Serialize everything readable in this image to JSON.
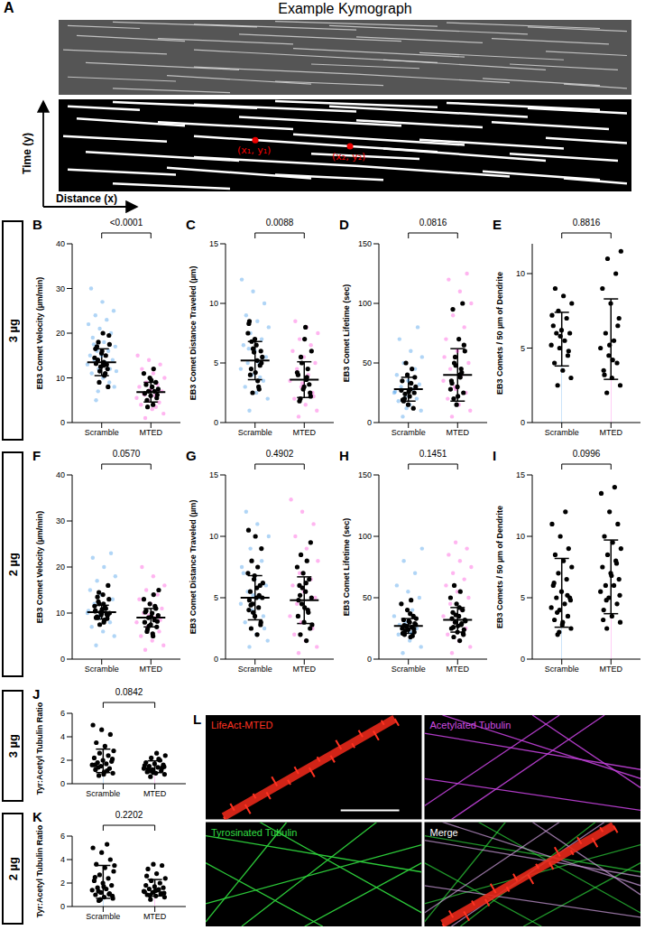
{
  "chart_data": [
    {
      "type": "scatter",
      "label": "B",
      "y_label": "EB3 Comet Velocity (µm/min)",
      "ylim": [
        0,
        40
      ],
      "yticks": [
        0,
        10,
        20,
        30,
        40
      ],
      "annotation": "<0.0001",
      "series": [
        {
          "name": "Scramble",
          "color": "#1e88e5",
          "values": [
            5,
            8,
            10,
            11,
            12,
            12,
            13,
            13,
            14,
            14,
            15,
            15,
            16,
            16,
            17,
            18,
            19,
            20,
            21,
            22,
            23,
            24,
            25,
            27,
            30,
            9,
            7,
            11.5,
            13.5,
            17.5
          ],
          "cell_values": [
            13.5,
            14,
            12,
            15.5,
            16.5,
            11,
            9,
            19.5,
            20,
            17,
            13,
            12.5,
            14.5,
            10.5,
            18,
            8,
            16,
            13.2,
            15,
            11.5,
            17.5,
            12.8
          ],
          "mean": 13.5,
          "sd": 3
        },
        {
          "name": "MTED",
          "color": "#ff2ad4",
          "values": [
            1,
            2,
            3,
            4,
            4.5,
            5,
            5.5,
            6,
            6.5,
            7,
            7.5,
            8,
            8.5,
            9,
            10,
            11,
            12,
            13,
            14,
            15,
            3.5,
            6.2
          ],
          "cell_values": [
            4,
            5,
            5.5,
            6,
            6.5,
            7,
            7,
            7.5,
            8,
            8.5,
            9,
            10,
            11,
            12,
            3.5,
            6.2,
            9.5
          ],
          "mean": 6.8,
          "sd": 2.2
        }
      ]
    },
    {
      "type": "scatter",
      "label": "C",
      "y_label": "EB3 Comet Distance Traveled (µm)",
      "ylim": [
        0,
        15
      ],
      "yticks": [
        0,
        5,
        10,
        15
      ],
      "annotation": "0.0088",
      "series": [
        {
          "name": "Scramble",
          "color": "#1e88e5",
          "values": [
            1,
            2,
            2.5,
            3,
            3.5,
            4,
            4.5,
            5,
            5,
            5.5,
            6,
            6.5,
            7,
            7.5,
            8,
            8.5,
            9,
            10,
            11,
            12,
            3.8,
            6.2
          ],
          "cell_values": [
            5.2,
            4.5,
            6,
            7,
            8.3,
            3,
            2.5,
            5.5,
            6.5,
            4,
            4.8,
            5.9,
            7.5,
            3.5,
            6.8,
            5,
            4.2,
            8.5,
            2.8,
            6.2
          ],
          "mean": 5.2,
          "sd": 1.6
        },
        {
          "name": "MTED",
          "color": "#ff2ad4",
          "values": [
            0.5,
            1,
            1.5,
            2,
            2.5,
            3,
            3.5,
            4,
            4.5,
            5,
            5.5,
            6,
            6.5,
            7,
            7.5,
            8,
            8.5,
            2.2,
            3.3
          ],
          "cell_values": [
            3.6,
            2,
            2.5,
            3,
            4,
            4.5,
            5,
            6,
            8,
            1.8,
            3.2,
            2.8,
            4.2,
            3.8,
            5.5,
            2.2,
            7
          ],
          "mean": 3.6,
          "sd": 1.5
        }
      ]
    },
    {
      "type": "scatter",
      "label": "D",
      "y_label": "EB3 Comet Lifetime (sec)",
      "ylim": [
        0,
        150
      ],
      "yticks": [
        0,
        50,
        100,
        150
      ],
      "annotation": "0.0816",
      "series": [
        {
          "name": "Scramble",
          "color": "#1e88e5",
          "values": [
            5,
            10,
            15,
            18,
            20,
            22,
            25,
            28,
            30,
            32,
            35,
            40,
            45,
            50,
            55,
            60,
            70,
            80,
            12,
            26
          ],
          "cell_values": [
            28,
            20,
            25,
            15,
            35,
            45,
            50,
            30,
            22,
            18,
            12,
            40,
            27,
            33,
            24,
            38,
            26,
            19
          ],
          "mean": 28,
          "sd": 10
        },
        {
          "name": "MTED",
          "color": "#ff2ad4",
          "values": [
            5,
            10,
            15,
            20,
            25,
            30,
            35,
            40,
            45,
            50,
            60,
            70,
            80,
            90,
            100,
            110,
            120,
            125,
            28,
            55
          ],
          "cell_values": [
            40,
            20,
            25,
            30,
            35,
            45,
            55,
            60,
            70,
            95,
            100,
            15,
            28,
            38,
            50,
            65,
            22,
            33,
            42,
            48
          ],
          "mean": 40,
          "sd": 22
        }
      ]
    },
    {
      "type": "bar",
      "label": "E",
      "y_label": "EB3 Comets / 50 µm of Dendrite",
      "ylim": [
        0,
        12
      ],
      "yticks": [
        0,
        5,
        10
      ],
      "annotation": "0.8816",
      "series": [
        {
          "name": "Scramble",
          "color": "#1e88e5",
          "values": [
            2.5,
            3,
            3.5,
            4,
            4.5,
            5,
            5.2,
            5.5,
            6,
            6,
            6.2,
            6.5,
            7,
            7.5,
            8,
            8.5,
            9,
            4.8,
            5.8,
            7.2
          ],
          "mean": 5.6,
          "sd": 1.8
        },
        {
          "name": "MTED",
          "color": "#ff2ad4",
          "values": [
            2,
            2.5,
            3,
            3.5,
            4,
            4.5,
            5,
            5.5,
            6,
            7,
            8,
            9,
            10,
            11,
            11.5,
            4.2,
            3.2,
            6.5,
            5.2
          ],
          "mean": 5.6,
          "sd": 2.7
        }
      ]
    },
    {
      "type": "scatter",
      "label": "F",
      "y_label": "EB3 Comet Velocity (µm/min)",
      "ylim": [
        0,
        40
      ],
      "yticks": [
        0,
        10,
        20,
        30,
        40
      ],
      "annotation": "0.0570",
      "series": [
        {
          "name": "Scramble",
          "color": "#1e88e5",
          "values": [
            3,
            5,
            6,
            7,
            8,
            9,
            10,
            11,
            12,
            13,
            14,
            15,
            16,
            17,
            18,
            20,
            22,
            23,
            9.5,
            10.5
          ],
          "cell_values": [
            8,
            9,
            9.5,
            10,
            10.5,
            11,
            12,
            13,
            14,
            9.2,
            9.8,
            10.2,
            11.5,
            8.5,
            12.5,
            16,
            10.8,
            9,
            11,
            7.5,
            10,
            12,
            13.5,
            8.8,
            9.6,
            10.4,
            11.2,
            14.5
          ],
          "mean": 10.2,
          "sd": 1.5
        },
        {
          "name": "MTED",
          "color": "#ff2ad4",
          "values": [
            2,
            3,
            4,
            5,
            6,
            7,
            8,
            9,
            10,
            11,
            12,
            13,
            14,
            15,
            16,
            18,
            20,
            8.5,
            9.5
          ],
          "cell_values": [
            5,
            6,
            7,
            7.5,
            8,
            8.5,
            9,
            9.5,
            10,
            10.5,
            11,
            12,
            13,
            14,
            6.5,
            8.2,
            9.2,
            10.2,
            11.5,
            7.2,
            15,
            5.5
          ],
          "mean": 9,
          "sd": 2
        }
      ]
    },
    {
      "type": "scatter",
      "label": "G",
      "y_label": "EB3 Comet Distance Traveled (µm)",
      "ylim": [
        0,
        15
      ],
      "yticks": [
        0,
        5,
        10,
        15
      ],
      "annotation": "0.4902",
      "series": [
        {
          "name": "Scramble",
          "color": "#1e88e5",
          "values": [
            1,
            1.5,
            2,
            3,
            3.5,
            4,
            4.5,
            5,
            5.5,
            6,
            6.5,
            7,
            8,
            9,
            10,
            11,
            12,
            2.5,
            5.2,
            7.5
          ],
          "cell_values": [
            2,
            2.5,
            3,
            3.5,
            4,
            4.2,
            4.5,
            5,
            5,
            5.5,
            6,
            6.5,
            7,
            7.5,
            8,
            9,
            10,
            4.8,
            5.2,
            3.8,
            6.2,
            5.8,
            4.4,
            2.8,
            6.8,
            10.5
          ],
          "mean": 5,
          "sd": 1.8
        },
        {
          "name": "MTED",
          "color": "#ff2ad4",
          "values": [
            0.5,
            1,
            1.5,
            2,
            2.5,
            3,
            3.5,
            4,
            4.5,
            5,
            5.5,
            6,
            6.5,
            7,
            8,
            9,
            10,
            11,
            12,
            13
          ],
          "cell_values": [
            1.5,
            2,
            2.5,
            3,
            3.5,
            4,
            4.5,
            5,
            5.5,
            6,
            6.5,
            7,
            7.5,
            8,
            8.5,
            9.5,
            4.2,
            4.8,
            3.8,
            5.8,
            2.8,
            6.2,
            5.2
          ],
          "mean": 4.8,
          "sd": 1.9
        }
      ]
    },
    {
      "type": "scatter",
      "label": "H",
      "y_label": "EB3 Comet Lifetime (sec)",
      "ylim": [
        0,
        150
      ],
      "yticks": [
        0,
        50,
        100,
        150
      ],
      "annotation": "0.1451",
      "series": [
        {
          "name": "Scramble",
          "color": "#1e88e5",
          "values": [
            5,
            10,
            15,
            20,
            25,
            30,
            35,
            40,
            45,
            50,
            55,
            60,
            70,
            80,
            90,
            22,
            28
          ],
          "cell_values": [
            18,
            20,
            22,
            24,
            25,
            26,
            27,
            28,
            30,
            32,
            35,
            40,
            45,
            48,
            23,
            29,
            31,
            21,
            19,
            26.5,
            33,
            37,
            27.5,
            24.5
          ],
          "mean": 27,
          "sd": 6
        },
        {
          "name": "MTED",
          "color": "#ff2ad4",
          "values": [
            5,
            10,
            15,
            20,
            25,
            30,
            35,
            40,
            45,
            50,
            55,
            60,
            65,
            70,
            75,
            80,
            85,
            90,
            95
          ],
          "cell_values": [
            15,
            18,
            20,
            22,
            25,
            28,
            30,
            32,
            35,
            38,
            40,
            45,
            50,
            55,
            60,
            24,
            27,
            33,
            29,
            36,
            31,
            42,
            26,
            21
          ],
          "mean": 32,
          "sd": 10
        }
      ]
    },
    {
      "type": "bar",
      "label": "I",
      "y_label": "EB3 Comets / 50 µm of Dendrite",
      "ylim": [
        0,
        15
      ],
      "yticks": [
        0,
        5,
        10,
        15
      ],
      "annotation": "0.0996",
      "series": [
        {
          "name": "Scramble",
          "color": "#1e88e5",
          "values": [
            2,
            2.5,
            3,
            3.2,
            3.5,
            4,
            4.2,
            4.5,
            5,
            5,
            5.5,
            6,
            6.5,
            7,
            7.5,
            8,
            8.5,
            9,
            10,
            11,
            12,
            3.8,
            4.8,
            2.8,
            6.2,
            5.2,
            2.2
          ],
          "mean": 5.4,
          "sd": 2.8
        },
        {
          "name": "MTED",
          "color": "#ff2ad4",
          "values": [
            2.5,
            3,
            3.5,
            4,
            4.5,
            5,
            5.5,
            6,
            6,
            6.5,
            7,
            7.5,
            8,
            8.5,
            9,
            9.5,
            10,
            11,
            12,
            13.5,
            14,
            4.8,
            5.2,
            6.8,
            3.2,
            7.8
          ],
          "mean": 6.7,
          "sd": 3
        }
      ]
    },
    {
      "type": "bar",
      "label": "J",
      "y_label": "Tyr:Acetyl Tubulin Ratio",
      "ylim": [
        0,
        6
      ],
      "yticks": [
        0,
        2,
        4,
        6
      ],
      "annotation": "0.0842",
      "series": [
        {
          "name": "Scramble",
          "color": "#1e88e5",
          "values": [
            0.7,
            0.9,
            1,
            1.2,
            1.3,
            1.5,
            1.6,
            1.7,
            1.8,
            1.9,
            2,
            2.2,
            2.4,
            2.6,
            2.8,
            3.2,
            3.5,
            4.2,
            4.6,
            5,
            1.1,
            1.4,
            2.1,
            0.8,
            1.6
          ],
          "mean": 1.95,
          "sd": 1
        },
        {
          "name": "MTED",
          "color": "#ff2ad4",
          "values": [
            0.6,
            0.8,
            0.9,
            1,
            1.1,
            1.2,
            1.3,
            1.4,
            1.5,
            1.6,
            1.7,
            1.8,
            2,
            2.2,
            2.4,
            2.6,
            1.25,
            1.35,
            0.95,
            1.55,
            2.1,
            1.15,
            1.45
          ],
          "mean": 1.45,
          "sd": 0.5
        }
      ]
    },
    {
      "type": "bar",
      "label": "K",
      "y_label": "Tyr:Acetyl Tubulin Ratio",
      "ylim": [
        0,
        6
      ],
      "yticks": [
        0,
        2,
        4,
        6
      ],
      "annotation": "0.2202",
      "series": [
        {
          "name": "Scramble",
          "color": "#1e88e5",
          "values": [
            0.5,
            0.7,
            0.8,
            1,
            1.1,
            1.2,
            1.4,
            1.5,
            1.6,
            1.8,
            2,
            2.2,
            2.4,
            2.7,
            3,
            3.3,
            3.6,
            4,
            4.6,
            5,
            5.3,
            1.3,
            0.9,
            1.7,
            2.5,
            1.05,
            0.6,
            3.5
          ],
          "mean": 2.1,
          "sd": 1.4
        },
        {
          "name": "MTED",
          "color": "#ff2ad4",
          "values": [
            0.6,
            0.8,
            0.9,
            1,
            1.1,
            1.2,
            1.3,
            1.4,
            1.5,
            1.6,
            1.7,
            1.8,
            2,
            2.2,
            2.4,
            2.8,
            3.2,
            3.5,
            3.6,
            1.25,
            1.45,
            0.95,
            1.15,
            1.35,
            2.6,
            1.05
          ],
          "mean": 1.6,
          "sd": 0.7
        }
      ]
    }
  ],
  "figure": {
    "kymograph": {
      "label": "A",
      "title": "Example Kymograph",
      "y_axis": "Time (y)",
      "x_axis": "Distance (x)",
      "points": [
        "(x₁, y₁)",
        "(x₂, y₂)"
      ]
    },
    "row_labels": [
      "3 µg",
      "2 µg",
      "3 µg",
      "2 µg"
    ],
    "micrograph": {
      "label": "L",
      "channels": [
        "LifeAct-MTED",
        "Acetylated Tubulin",
        "Tyrosinated Tubulin",
        "Merge"
      ]
    }
  }
}
